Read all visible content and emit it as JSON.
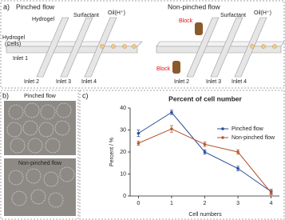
{
  "panel_a": {
    "label": "a)",
    "left": {
      "title": "Pinched flow",
      "hydrogel": "Hydrogel",
      "surfactant": "Surfactant",
      "oil": "Oil(H⁺)",
      "inlet_hydrogel": [
        "Hydrogel",
        "(Cells)"
      ],
      "inlet1": "Inlet 1",
      "inlet2": "Inlet 2",
      "inlet3": "Inlet 3",
      "inlet4": "Inlet 4"
    },
    "right": {
      "title": "Non-pinched flow",
      "block_top": "Block",
      "block_bottom": "Block",
      "surfactant": "Surfactant",
      "oil": "Oil(H⁺)",
      "inlet2": "Inlet 2",
      "inlet3": "Inlet 3",
      "inlet4": "Inlet 4"
    }
  },
  "panel_b": {
    "label": "b)",
    "top": "Pinched flow",
    "bottom": "Non-pinched flow"
  },
  "panel_c": {
    "label": "c)"
  },
  "chart_data": {
    "type": "line",
    "title": "Percent of cell number",
    "xlabel": "Cell numbers",
    "ylabel": "Percent / %",
    "x": [
      0,
      1,
      2,
      3,
      4
    ],
    "xlim": [
      -0.25,
      4.25
    ],
    "xticks": [
      0,
      1,
      2,
      3,
      4
    ],
    "ylim": [
      0,
      40
    ],
    "yticks": [
      0,
      10,
      20,
      30,
      40
    ],
    "legend": "upper right",
    "series": [
      {
        "name": "Pinched flow",
        "color": "#2b4c9b",
        "values": [
          28.5,
          38,
          20,
          12.5,
          2
        ],
        "errors": [
          1.5,
          1,
          1,
          1,
          1
        ]
      },
      {
        "name": "Non-pinched flow",
        "color": "#b5552f",
        "values": [
          24,
          30.5,
          23.5,
          20,
          1.5
        ],
        "errors": [
          1,
          1.5,
          1,
          1,
          1
        ]
      }
    ]
  }
}
